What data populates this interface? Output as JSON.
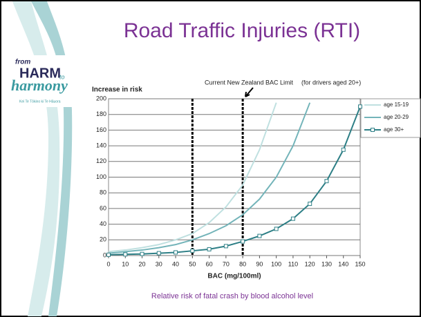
{
  "slide": {
    "title": "Road Traffic Injuries (RTI)",
    "caption": "Relative risk of fatal crash by blood alcohol level",
    "logo": {
      "from": "from",
      "harm": "HARM",
      "to": "to",
      "harmony": "harmony",
      "tagline": "Kei Te Tōkino ki Te Hāuora"
    }
  },
  "chart_data": {
    "type": "line",
    "y_label": "Increase in risk",
    "x_label": "BAC (mg/100ml)",
    "annotations": [
      "Current New Zealand BAC Limit",
      "(for drivers aged 20+)"
    ],
    "x": [
      0,
      10,
      20,
      30,
      40,
      50,
      60,
      70,
      80,
      90,
      100,
      110,
      120,
      130,
      140,
      150
    ],
    "series": [
      {
        "name": "age 15-19",
        "color": "#bfe0e0",
        "markers": false,
        "values": [
          5,
          7,
          10,
          14,
          20,
          28,
          42,
          62,
          90,
          135,
          195,
          null,
          null,
          null,
          null,
          null
        ]
      },
      {
        "name": "age 20-29",
        "color": "#73b4b9",
        "markers": false,
        "values": [
          3,
          5,
          7,
          10,
          14,
          20,
          28,
          38,
          52,
          72,
          100,
          140,
          195,
          null,
          null,
          null
        ]
      },
      {
        "name": "age 30+",
        "color": "#2d7f86",
        "markers": true,
        "values": [
          1,
          1.5,
          2,
          3,
          4,
          6,
          8,
          12,
          18,
          25,
          34,
          47,
          66,
          95,
          135,
          190
        ]
      }
    ],
    "limit_lines": [
      50,
      80
    ],
    "xlim": [
      0,
      150
    ],
    "xticks": [
      0,
      10,
      20,
      30,
      40,
      50,
      60,
      70,
      80,
      90,
      100,
      110,
      120,
      130,
      140,
      150
    ],
    "ylim": [
      0,
      200
    ],
    "yticks": [
      0,
      20,
      40,
      60,
      80,
      100,
      120,
      140,
      160,
      180,
      200
    ],
    "grid": true
  }
}
